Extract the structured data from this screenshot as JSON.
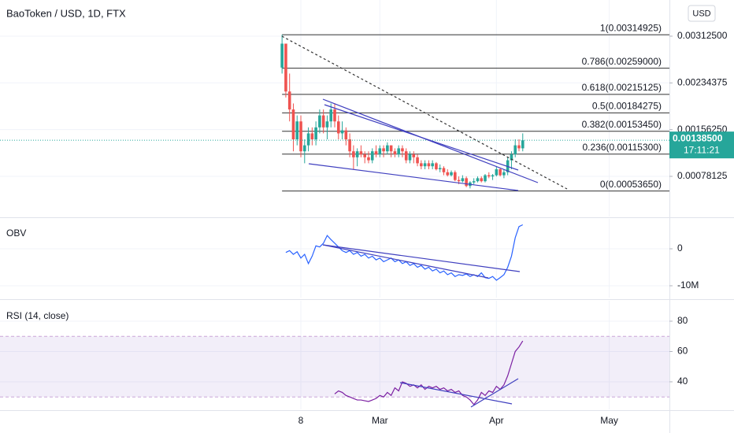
{
  "chart_data": [
    {
      "type": "candlestick",
      "title": "BaoToken / USD, 1D, FTX",
      "currency_button": "USD",
      "xlim": [
        -75,
        103
      ],
      "xticks": [
        {
          "value": 5,
          "label": "8"
        },
        {
          "value": 26,
          "label": "Mar"
        },
        {
          "value": 57,
          "label": "Apr"
        },
        {
          "value": 87,
          "label": "May"
        }
      ],
      "ylim": [
        0.00011,
        0.00373
      ],
      "yticks": [
        {
          "value": 0.003125,
          "label": "0.00312500"
        },
        {
          "value": 0.00234375,
          "label": "0.00234375"
        },
        {
          "value": 0.0015625,
          "label": "0.00156250"
        },
        {
          "value": 0.00078125,
          "label": "0.00078125"
        }
      ],
      "grid": true,
      "up_color": "#26a69a",
      "down_color": "#ef5350",
      "open": [
        0.0026,
        0.003,
        0.0022,
        0.0019,
        0.0014,
        0.0017,
        0.0012,
        0.0013,
        0.0015,
        0.0014,
        0.0016,
        0.0018,
        0.0016,
        0.0017,
        0.0019,
        0.0017,
        0.0015,
        0.00155,
        0.0014,
        0.0012,
        0.0011,
        0.0012,
        0.00115,
        0.0011,
        0.00105,
        0.0012,
        0.00115,
        0.00125,
        0.0012,
        0.0013,
        0.0012,
        0.00115,
        0.00125,
        0.0012,
        0.00105,
        0.00115,
        0.0011,
        0.001,
        0.00095,
        0.001,
        0.00095,
        0.001,
        0.0009,
        0.00092,
        0.00085,
        0.0008,
        0.00085,
        0.00072,
        0.0007,
        0.00075,
        0.00062,
        0.00068,
        0.0007,
        0.00075,
        0.0007,
        0.0008,
        0.00078,
        0.0008,
        0.0009,
        0.0008,
        0.00085,
        0.00105,
        0.00115,
        0.0013,
        0.00125
      ],
      "high": [
        0.00315,
        0.003,
        0.0025,
        0.002,
        0.0018,
        0.0018,
        0.0014,
        0.0016,
        0.0016,
        0.0017,
        0.0019,
        0.0019,
        0.0018,
        0.002,
        0.002,
        0.0018,
        0.0017,
        0.0016,
        0.0015,
        0.0013,
        0.00125,
        0.0013,
        0.0012,
        0.0012,
        0.00125,
        0.0013,
        0.0013,
        0.0013,
        0.00135,
        0.0013,
        0.00125,
        0.0013,
        0.0013,
        0.00125,
        0.0012,
        0.0012,
        0.00115,
        0.00105,
        0.00105,
        0.00105,
        0.00105,
        0.00102,
        0.00098,
        0.00095,
        0.0009,
        0.00088,
        0.00088,
        0.00078,
        0.0008,
        0.00078,
        0.0007,
        0.00075,
        0.00078,
        0.00078,
        0.00082,
        0.00085,
        0.00082,
        0.00095,
        0.00092,
        0.0009,
        0.0011,
        0.0012,
        0.0014,
        0.0014,
        0.0015
      ],
      "low": [
        0.0025,
        0.0021,
        0.0017,
        0.0012,
        0.0013,
        0.0011,
        0.001,
        0.0012,
        0.0013,
        0.0013,
        0.0015,
        0.0015,
        0.0014,
        0.0016,
        0.0016,
        0.0014,
        0.0014,
        0.0013,
        0.0011,
        0.0009,
        0.00095,
        0.0011,
        0.001,
        0.001,
        0.001,
        0.0011,
        0.0011,
        0.0011,
        0.00115,
        0.0011,
        0.0011,
        0.0011,
        0.0011,
        0.001,
        0.001,
        0.001,
        0.00095,
        0.0009,
        0.0009,
        0.0009,
        0.0009,
        0.00088,
        0.00085,
        0.0008,
        0.00078,
        0.00078,
        0.0007,
        0.00065,
        0.00068,
        0.0006,
        0.00058,
        0.00065,
        0.00068,
        0.00068,
        0.00068,
        0.00075,
        0.00072,
        0.00078,
        0.00078,
        0.00075,
        0.0008,
        0.0009,
        0.0011,
        0.0012,
        0.0012
      ],
      "close": [
        0.003,
        0.0022,
        0.0019,
        0.0014,
        0.0017,
        0.0012,
        0.0013,
        0.0015,
        0.0014,
        0.0016,
        0.0018,
        0.0016,
        0.0017,
        0.0019,
        0.0017,
        0.0015,
        0.00155,
        0.0014,
        0.0012,
        0.0011,
        0.0012,
        0.00115,
        0.0011,
        0.00105,
        0.0012,
        0.00115,
        0.00125,
        0.0012,
        0.0013,
        0.0012,
        0.00115,
        0.00125,
        0.0012,
        0.00105,
        0.00115,
        0.0011,
        0.001,
        0.00095,
        0.001,
        0.00095,
        0.001,
        0.0009,
        0.00092,
        0.00085,
        0.0008,
        0.00085,
        0.00072,
        0.0007,
        0.00075,
        0.00062,
        0.00068,
        0.0007,
        0.00075,
        0.0007,
        0.0008,
        0.00078,
        0.0008,
        0.0009,
        0.0008,
        0.00085,
        0.00105,
        0.00115,
        0.0013,
        0.00125,
        0.001385
      ],
      "fib_levels": [
        {
          "label": "1(0.00314925)",
          "value": 0.00314925
        },
        {
          "label": "0.786(0.00259000)",
          "value": 0.00259
        },
        {
          "label": "0.618(0.00215125)",
          "value": 0.00215125
        },
        {
          "label": "0.5(0.00184275)",
          "value": 0.00184275
        },
        {
          "label": "0.382(0.00153450)",
          "value": 0.0015345
        },
        {
          "label": "0.236(0.00115300)",
          "value": 0.001153
        },
        {
          "label": "0(0.00053650)",
          "value": 0.0005365
        }
      ],
      "last_price": {
        "value": 0.001385,
        "label": "0.00138500",
        "countdown": "17:11:21"
      }
    },
    {
      "type": "line",
      "title": "OBV",
      "color": "#2962ff",
      "ylim": [
        -13200000,
        8100000
      ],
      "yticks": [
        0,
        {
          "value": -10000000,
          "label": "-10M"
        }
      ],
      "values": [
        null,
        -1000000,
        -500000,
        -1500000,
        -800000,
        -2500000,
        -1500000,
        -4000000,
        -2000000,
        800000,
        500000,
        1500000,
        3600000,
        2500000,
        1500000,
        500000,
        -500000,
        -1000000,
        -500000,
        -1500000,
        -1000000,
        -2000000,
        -1500000,
        -2500000,
        -2000000,
        -3000000,
        -2500000,
        -3500000,
        -3000000,
        -2500000,
        -3500000,
        -3000000,
        -4000000,
        -3500000,
        -4500000,
        -4000000,
        -5000000,
        -4500000,
        -5500000,
        -5000000,
        -6000000,
        -5500000,
        -6500000,
        -6000000,
        -7000000,
        -6500000,
        -7500000,
        -7000000,
        -7200000,
        -6800000,
        -7500000,
        -7000000,
        -7500000,
        -6500000,
        -7800000,
        -8000000,
        -7500000,
        -8500000,
        -7800000,
        -7000000,
        -5000000,
        -2000000,
        3000000,
        6000000,
        6500000
      ]
    },
    {
      "type": "line",
      "title": "RSI (14, close)",
      "color": "#7b1fa2",
      "band": [
        30,
        70
      ],
      "ylim": [
        21.8,
        93.5
      ],
      "yticks": [
        80,
        60,
        40
      ],
      "values": [
        null,
        null,
        null,
        null,
        null,
        null,
        null,
        null,
        null,
        null,
        null,
        null,
        null,
        null,
        32,
        34,
        33,
        31,
        30,
        29,
        28,
        28,
        27.5,
        27,
        28,
        29,
        31,
        30,
        33,
        31,
        36,
        34,
        40,
        39,
        37,
        38,
        36,
        38,
        35,
        37,
        36,
        37,
        35,
        36,
        34,
        35,
        33,
        34,
        31,
        30,
        28,
        25,
        28,
        33,
        31,
        34,
        33,
        37,
        35,
        38,
        44,
        52,
        60,
        63,
        67
      ]
    }
  ]
}
